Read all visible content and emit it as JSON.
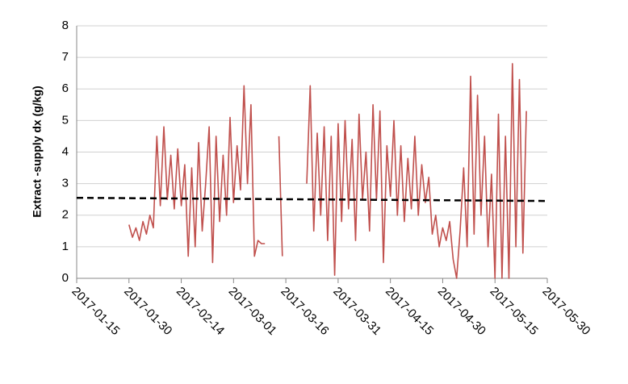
{
  "chart_data": {
    "type": "line",
    "y_label": "Extract -supply dx (g/kg)",
    "xlim": [
      "2017-01-15",
      "2017-05-30"
    ],
    "xticks": [
      "2017-01-15",
      "2017-01-30",
      "2017-02-14",
      "2017-03-01",
      "2017-03-16",
      "2017-03-31",
      "2017-04-15",
      "2017-04-30",
      "2017-05-15",
      "2017-05-30"
    ],
    "ylim": [
      0,
      8
    ],
    "yticks": [
      0,
      1,
      2,
      3,
      4,
      5,
      6,
      7,
      8
    ],
    "grid": true,
    "series": [
      {
        "color": "#c0504d",
        "dashed": false,
        "x": [
          "2017-01-30",
          "2017-01-31",
          "2017-02-01",
          "2017-02-02",
          "2017-02-03",
          "2017-02-04",
          "2017-02-05",
          "2017-02-06",
          "2017-02-07",
          "2017-02-08",
          "2017-02-09",
          "2017-02-10",
          "2017-02-11",
          "2017-02-12",
          "2017-02-13",
          "2017-02-14",
          "2017-02-15",
          "2017-02-16",
          "2017-02-17",
          "2017-02-18",
          "2017-02-19",
          "2017-02-20",
          "2017-02-21",
          "2017-02-22",
          "2017-02-23",
          "2017-02-24",
          "2017-02-25",
          "2017-02-26",
          "2017-02-27",
          "2017-02-28",
          "2017-03-01",
          "2017-03-02",
          "2017-03-03",
          "2017-03-04",
          "2017-03-05",
          "2017-03-06",
          "2017-03-07",
          "2017-03-08",
          "2017-03-09",
          "2017-03-10",
          "2017-03-11",
          "2017-03-12",
          "2017-03-13",
          "2017-03-14",
          "2017-03-15",
          "2017-03-16",
          "2017-03-17",
          "2017-03-18",
          "2017-03-19",
          "2017-03-20",
          "2017-03-21",
          "2017-03-22",
          "2017-03-23",
          "2017-03-24",
          "2017-03-25",
          "2017-03-26",
          "2017-03-27",
          "2017-03-28",
          "2017-03-29",
          "2017-03-30",
          "2017-03-31",
          "2017-04-01",
          "2017-04-02",
          "2017-04-03",
          "2017-04-04",
          "2017-04-05",
          "2017-04-06",
          "2017-04-07",
          "2017-04-08",
          "2017-04-09",
          "2017-04-10",
          "2017-04-11",
          "2017-04-12",
          "2017-04-13",
          "2017-04-14",
          "2017-04-15",
          "2017-04-16",
          "2017-04-17",
          "2017-04-18",
          "2017-04-19",
          "2017-04-20",
          "2017-04-21",
          "2017-04-22",
          "2017-04-23",
          "2017-04-24",
          "2017-04-25",
          "2017-04-26",
          "2017-04-27",
          "2017-04-28",
          "2017-04-29",
          "2017-04-30",
          "2017-05-01",
          "2017-05-02",
          "2017-05-03",
          "2017-05-04",
          "2017-05-05",
          "2017-05-06",
          "2017-05-07",
          "2017-05-08",
          "2017-05-09",
          "2017-05-10",
          "2017-05-11",
          "2017-05-12",
          "2017-05-13",
          "2017-05-14",
          "2017-05-15",
          "2017-05-16",
          "2017-05-17",
          "2017-05-18",
          "2017-05-19",
          "2017-05-20",
          "2017-05-21",
          "2017-05-22",
          "2017-05-23",
          "2017-05-24"
        ],
        "values": [
          1.7,
          1.3,
          1.6,
          1.2,
          1.8,
          1.4,
          2.0,
          1.6,
          4.5,
          2.3,
          4.8,
          2.5,
          3.9,
          2.2,
          4.1,
          2.3,
          3.6,
          0.7,
          3.5,
          1.0,
          4.3,
          1.5,
          3.0,
          4.8,
          0.5,
          4.5,
          1.8,
          3.9,
          2.0,
          5.1,
          2.4,
          4.2,
          2.8,
          6.1,
          3.0,
          5.5,
          0.7,
          1.2,
          1.1,
          1.1,
          null,
          null,
          null,
          4.5,
          0.7,
          null,
          null,
          null,
          null,
          null,
          null,
          3.0,
          6.1,
          1.5,
          4.6,
          2.0,
          4.8,
          1.2,
          4.5,
          0.1,
          4.9,
          1.8,
          5.0,
          2.2,
          4.4,
          1.2,
          5.2,
          2.5,
          4.0,
          1.5,
          5.5,
          2.5,
          5.3,
          0.5,
          4.2,
          2.6,
          5.0,
          2.0,
          4.2,
          1.8,
          3.8,
          2.2,
          4.5,
          2.0,
          3.6,
          2.4,
          3.2,
          1.4,
          2.0,
          1.0,
          1.6,
          1.2,
          1.8,
          0.6,
          0.0,
          1.5,
          3.5,
          1.0,
          6.4,
          1.4,
          5.8,
          2.0,
          4.5,
          1.0,
          3.3,
          0.0,
          5.2,
          0.0,
          4.5,
          0.0,
          6.8,
          1.0,
          6.3,
          0.8,
          5.3
        ]
      },
      {
        "color": "#000000",
        "dashed": true,
        "x": [
          "2017-01-15",
          "2017-05-30"
        ],
        "values": [
          2.55,
          2.45
        ]
      }
    ]
  }
}
